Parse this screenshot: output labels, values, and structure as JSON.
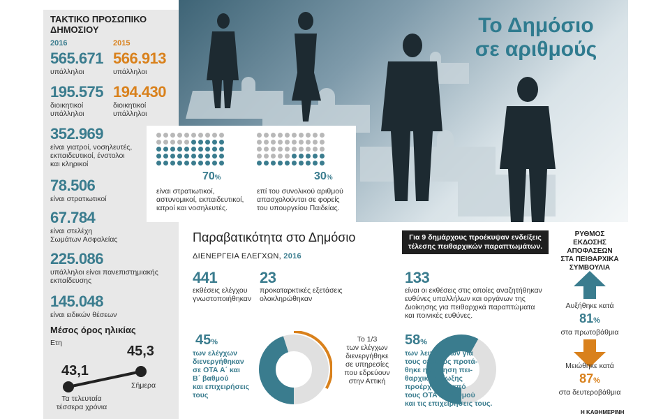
{
  "title": [
    "Το Δημόσιο",
    "σε αριθμούς"
  ],
  "left": {
    "heading": [
      "ΤΑΚΤΙΚΟ ΠΡΟΣΩΠΙΚΟ",
      "ΔΗΜΟΣΙΟΥ"
    ],
    "year_a": "2016",
    "year_b": "2015",
    "employees_a": "565.671",
    "employees_b": "566.913",
    "employees_label": "υπάλληλοι",
    "admin_a": "195.575",
    "admin_b": "194.430",
    "admin_label": [
      "διοικητικοί",
      "υπάλληλοι"
    ],
    "stat1_value": "352.969",
    "stat1_label": [
      "είναι γιατροί, νοσηλευτές,",
      "εκπαιδευτικοί, ένστολοι",
      "και κληρικοί"
    ],
    "stat2_value": "78.506",
    "stat2_label": "είναι στρατιωτικοί",
    "stat3_value": "67.784",
    "stat3_label": [
      "είναι στελέχη",
      "Σωμάτων Ασφαλείας"
    ],
    "stat4_value": "225.086",
    "stat4_label": [
      "υπάλληλοι είναι πανεπιστημιακής",
      "εκπαίδευσης"
    ],
    "stat5_value": "145.048",
    "stat5_label": "είναι ειδικών θέσεων",
    "age_title": "Μέσος όρος ηλικίας",
    "age_unit": "Ετη",
    "age_past": "43,1",
    "age_now": "45,3",
    "age_now_label": "Σήμερα",
    "age_past_label": [
      "Τα τελευταία",
      "τέσσερα χρόνια"
    ]
  },
  "dots": {
    "panel1_pct": "70",
    "panel1_fraction": 0.7,
    "panel1_label": [
      "είναι στρατιωτικοί,",
      "αστυνομικοί, εκπαιδευτικοί,",
      "ιατροί και νοσηλευτές."
    ],
    "panel2_pct": "30",
    "panel2_fraction": 0.3,
    "panel2_label": [
      "επί του συνολικού αριθμού",
      "απασχολούνται σε φορείς",
      "του υπουργείου Παιδείας."
    ],
    "pct_sign": "%"
  },
  "violation": {
    "title": "Παραβατικότητα στο Δημόσιο",
    "subtitle": "ΔΙΕΝΕΡΓΕΙΑ ΕΛΕΓΧΩΝ,",
    "year": "2016",
    "s1_value": "441",
    "s1_label": [
      "εκθέσεις ελέγχου",
      "γνωστοποιήθηκαν"
    ],
    "s2_value": "23",
    "s2_label": [
      "προκαταρκτικές εξετάσεις",
      "ολοκληρώθηκαν"
    ],
    "s3_value": "133",
    "s3_label": [
      "είναι οι εκθέσεις στις οποίες αναζητήθηκαν",
      "ευθύνες υπαλλήλων και οργάνων της",
      "Διοίκησης για πειθαρχικά παραπτώματα",
      "και ποινικές ευθύνες."
    ],
    "banner": [
      "Για 9 δημάρχους προέκυψαν ενδείξεις",
      "τέλεσης πειθαρχικών παραπτωμάτων."
    ],
    "donut1_pct": "45",
    "donut1_value": 0.45,
    "donut1_label": [
      "των ελέγχων",
      "διενεργήθηκαν",
      "σε ΟΤΑ Α΄ και",
      "Β΄ βαθμού",
      "και επιχειρήσεις",
      "τους"
    ],
    "donut1_note": [
      "Το 1/3",
      "των ελέγχων",
      "διενεργήθηκε",
      "σε υπηρεσίες",
      "που εδρεύουν",
      "στην Αττική"
    ],
    "donut2_pct": "58",
    "donut2_value": 0.58,
    "donut2_label": [
      "των λειτουργών για",
      "τους οποίους προτά-",
      "θηκε η άσκηση πει-",
      "θαρχικής δίωξης",
      "προέρχονται από",
      "τους ΟΤΑ Α΄ βαθμού",
      "και τις επιχειρήσεις τους."
    ]
  },
  "rate": {
    "title": [
      "ΡΥΘΜΟΣ ΕΚΔΟΣΗΣ",
      "ΑΠΟΦΑΣΕΩΝ",
      "ΣΤΑ ΠΕΙΘΑΡΧΙΚΑ",
      "ΣΥΜΒΟΥΛΙΑ"
    ],
    "up_label": "Αυξήθηκε κατά",
    "up_value": "81",
    "up_sub": "στα πρωτοβάθμια",
    "down_label": "Μειώθηκε κατά",
    "down_value": "87",
    "down_sub": "στα δευτεροβάθμια"
  },
  "credit": "Η ΚΑΘΗΜΕΡΙΝΗ",
  "colors": {
    "teal": "#3a7c8e",
    "orange": "#d9811c",
    "grey": "#b8b8b8"
  }
}
